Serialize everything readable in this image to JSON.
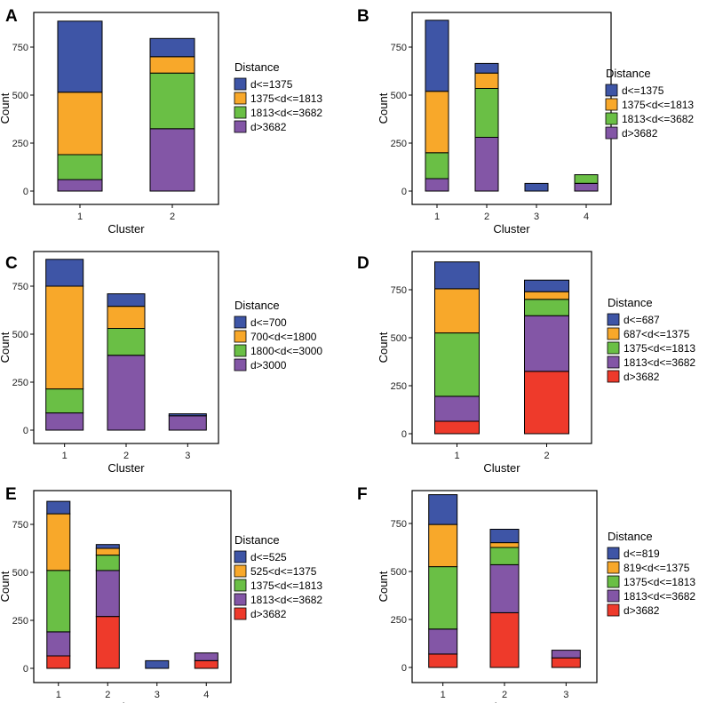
{
  "figure": {
    "colors": {
      "blue": "#3e55a6",
      "orange": "#f8a82a",
      "green": "#6abf45",
      "purple": "#8356a6",
      "red": "#ee3a2b",
      "frame": "#000000"
    },
    "legend_title": "Distance",
    "xlabel": "Cluster",
    "ylabel": "Count",
    "y_ticks": [
      0,
      250,
      500,
      750
    ]
  },
  "chart_data": [
    {
      "panel": "A",
      "type": "bar",
      "stacked": true,
      "title": "",
      "xlabel": "Cluster",
      "ylabel": "Count",
      "ylim": [
        0,
        900
      ],
      "categories": [
        "1",
        "2"
      ],
      "series": [
        {
          "name": "d>3682",
          "color": "#8356a6",
          "values": [
            60,
            325
          ]
        },
        {
          "name": "1813<d<=3682",
          "color": "#6abf45",
          "values": [
            130,
            290
          ]
        },
        {
          "name": "1375<d<=1813",
          "color": "#f8a82a",
          "values": [
            325,
            85
          ]
        },
        {
          "name": "d<=1375",
          "color": "#3e55a6",
          "values": [
            370,
            95
          ]
        }
      ],
      "legend": [
        "d<=1375",
        "1375<d<=1813",
        "1813<d<=3682",
        "d>3682"
      ]
    },
    {
      "panel": "B",
      "type": "bar",
      "stacked": true,
      "title": "",
      "xlabel": "Cluster",
      "ylabel": "Count",
      "ylim": [
        0,
        900
      ],
      "categories": [
        "1",
        "2",
        "3",
        "4"
      ],
      "series": [
        {
          "name": "d>3682",
          "color": "#8356a6",
          "values": [
            65,
            280,
            0,
            40
          ]
        },
        {
          "name": "1813<d<=3682",
          "color": "#6abf45",
          "values": [
            135,
            255,
            0,
            45
          ]
        },
        {
          "name": "1375<d<=1813",
          "color": "#f8a82a",
          "values": [
            320,
            80,
            0,
            0
          ]
        },
        {
          "name": "d<=1375",
          "color": "#3e55a6",
          "values": [
            370,
            50,
            40,
            0
          ]
        }
      ],
      "legend": [
        "d<=1375",
        "1375<d<=1813",
        "1813<d<=3682",
        "d>3682"
      ]
    },
    {
      "panel": "C",
      "type": "bar",
      "stacked": true,
      "title": "",
      "xlabel": "Cluster",
      "ylabel": "Count",
      "ylim": [
        0,
        900
      ],
      "categories": [
        "1",
        "2",
        "3"
      ],
      "series": [
        {
          "name": "d>3000",
          "color": "#8356a6",
          "values": [
            90,
            390,
            75
          ]
        },
        {
          "name": "1800<d<=3000",
          "color": "#6abf45",
          "values": [
            125,
            140,
            0
          ]
        },
        {
          "name": "700<d<=1800",
          "color": "#f8a82a",
          "values": [
            535,
            115,
            0
          ]
        },
        {
          "name": "d<=700",
          "color": "#3e55a6",
          "values": [
            140,
            65,
            10
          ]
        }
      ],
      "legend": [
        "d<=700",
        "700<d<=1800",
        "1800<d<=3000",
        "d>3000"
      ]
    },
    {
      "panel": "D",
      "type": "bar",
      "stacked": true,
      "title": "",
      "xlabel": "Cluster",
      "ylabel": "Count",
      "ylim": [
        0,
        900
      ],
      "categories": [
        "1",
        "2"
      ],
      "series": [
        {
          "name": "d>3682",
          "color": "#ee3a2b",
          "values": [
            65,
            325
          ]
        },
        {
          "name": "1813<d<=3682",
          "color": "#8356a6",
          "values": [
            130,
            290
          ]
        },
        {
          "name": "1375<d<=1813",
          "color": "#6abf45",
          "values": [
            330,
            85
          ]
        },
        {
          "name": "687<d<=1375",
          "color": "#f8a82a",
          "values": [
            230,
            40
          ]
        },
        {
          "name": "d<=687",
          "color": "#3e55a6",
          "values": [
            140,
            60
          ]
        }
      ],
      "legend": [
        "d<=687",
        "687<d<=1375",
        "1375<d<=1813",
        "1813<d<=3682",
        "d>3682"
      ]
    },
    {
      "panel": "E",
      "type": "bar",
      "stacked": true,
      "title": "",
      "xlabel": "Cluster",
      "ylabel": "Count",
      "ylim": [
        0,
        900
      ],
      "categories": [
        "1",
        "2",
        "3",
        "4"
      ],
      "series": [
        {
          "name": "d>3682",
          "color": "#ee3a2b",
          "values": [
            65,
            270,
            0,
            40
          ]
        },
        {
          "name": "1813<d<=3682",
          "color": "#8356a6",
          "values": [
            125,
            240,
            0,
            40
          ]
        },
        {
          "name": "1375<d<=1813",
          "color": "#6abf45",
          "values": [
            320,
            80,
            0,
            0
          ]
        },
        {
          "name": "525<d<=1375",
          "color": "#f8a82a",
          "values": [
            295,
            35,
            0,
            0
          ]
        },
        {
          "name": "d<=525",
          "color": "#3e55a6",
          "values": [
            65,
            20,
            40,
            0
          ]
        }
      ],
      "legend": [
        "d<=525",
        "525<d<=1375",
        "1375<d<=1813",
        "1813<d<=3682",
        "d>3682"
      ]
    },
    {
      "panel": "F",
      "type": "bar",
      "stacked": true,
      "title": "",
      "xlabel": "Cluster",
      "ylabel": "Count",
      "ylim": [
        0,
        900
      ],
      "categories": [
        "1",
        "2",
        "3"
      ],
      "series": [
        {
          "name": "d>3682",
          "color": "#ee3a2b",
          "values": [
            70,
            285,
            50
          ]
        },
        {
          "name": "1813<d<=3682",
          "color": "#8356a6",
          "values": [
            130,
            250,
            40
          ]
        },
        {
          "name": "1375<d<=1813",
          "color": "#6abf45",
          "values": [
            325,
            90,
            0
          ]
        },
        {
          "name": "819<d<=1375",
          "color": "#f8a82a",
          "values": [
            220,
            25,
            0
          ]
        },
        {
          "name": "d<=819",
          "color": "#3e55a6",
          "values": [
            155,
            70,
            0
          ]
        }
      ],
      "legend": [
        "d<=819",
        "819<d<=1375",
        "1375<d<=1813",
        "1813<d<=3682",
        "d>3682"
      ]
    }
  ]
}
